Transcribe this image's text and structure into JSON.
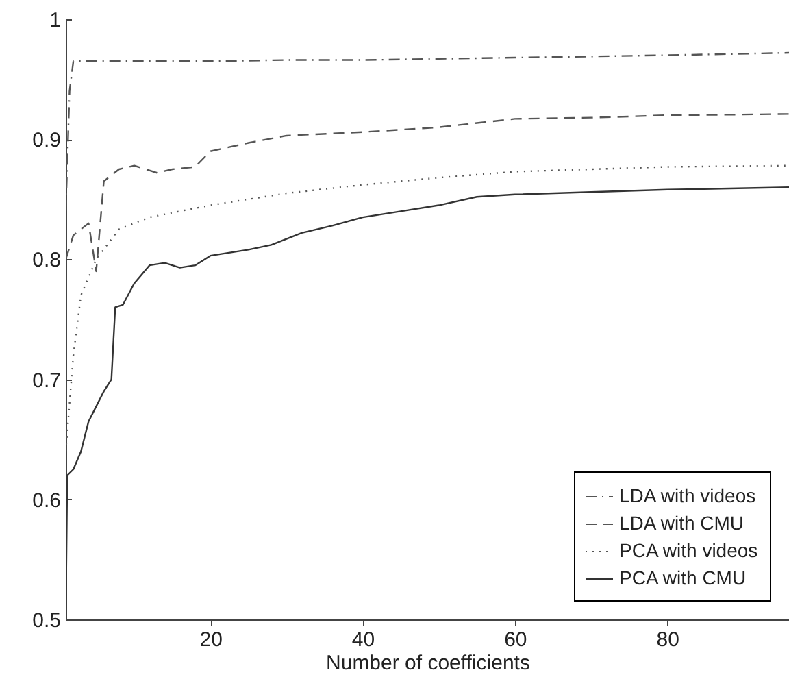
{
  "chart_data": {
    "type": "line",
    "xlabel": "Number of coefficients",
    "xlim": [
      1,
      96
    ],
    "xticks": [
      20,
      40,
      60,
      80
    ],
    "ylim": [
      0.5,
      1
    ],
    "yticks": [
      0.5,
      0.6,
      0.7,
      0.8,
      0.9,
      1
    ],
    "grid": false,
    "legend": "bottom right",
    "marker": "none",
    "series": [
      {
        "name": "LDA with videos",
        "color": "#555555",
        "line_style": "dashdot",
        "x": [
          1,
          1.5,
          2,
          10,
          20,
          30,
          40,
          50,
          60,
          70,
          80,
          96
        ],
        "values": [
          0.84,
          0.94,
          0.965,
          0.965,
          0.965,
          0.966,
          0.966,
          0.967,
          0.968,
          0.969,
          0.97,
          0.972
        ]
      },
      {
        "name": "LDA with CMU",
        "color": "#555555",
        "line_style": "dashed",
        "x": [
          1,
          2,
          3,
          4,
          5,
          6,
          8,
          10,
          13,
          15,
          18,
          20,
          25,
          30,
          40,
          50,
          60,
          70,
          80,
          96
        ],
        "values": [
          0.8,
          0.82,
          0.825,
          0.83,
          0.79,
          0.865,
          0.875,
          0.878,
          0.872,
          0.875,
          0.877,
          0.89,
          0.897,
          0.903,
          0.906,
          0.91,
          0.917,
          0.918,
          0.92,
          0.921
        ]
      },
      {
        "name": "PCA with videos",
        "color": "#555555",
        "line_style": "dotted",
        "x": [
          1,
          2,
          3,
          5,
          8,
          12,
          20,
          30,
          40,
          50,
          60,
          80,
          96
        ],
        "values": [
          0.64,
          0.72,
          0.77,
          0.8,
          0.825,
          0.835,
          0.845,
          0.855,
          0.862,
          0.868,
          0.873,
          0.877,
          0.878
        ]
      },
      {
        "name": "PCA with CMU",
        "color": "#333333",
        "line_style": "solid",
        "x": [
          1,
          1.2,
          2,
          3,
          4,
          6,
          7,
          7.5,
          8.5,
          10,
          12,
          14,
          16,
          18,
          20,
          25,
          28,
          32,
          36,
          40,
          45,
          50,
          55,
          60,
          70,
          80,
          96
        ],
        "values": [
          0.5,
          0.62,
          0.625,
          0.64,
          0.665,
          0.69,
          0.7,
          0.76,
          0.762,
          0.78,
          0.795,
          0.797,
          0.793,
          0.795,
          0.803,
          0.808,
          0.812,
          0.822,
          0.828,
          0.835,
          0.84,
          0.845,
          0.852,
          0.854,
          0.856,
          0.858,
          0.86
        ]
      }
    ]
  }
}
